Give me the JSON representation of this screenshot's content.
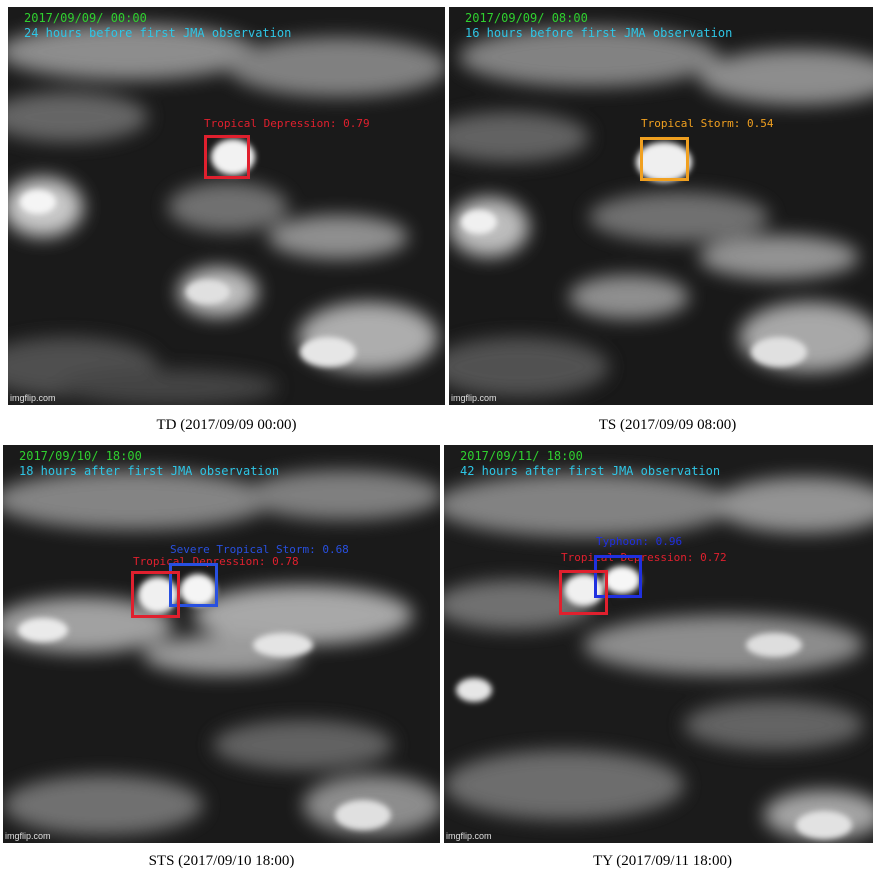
{
  "panels": [
    {
      "date": "2017/09/09/ 00:00",
      "obs": "24 hours before first JMA observation",
      "caption": "TD (2017/09/09 00:00)",
      "watermark": "imgflip.com",
      "detections": [
        {
          "label": "Tropical Depression: 0.79",
          "color": "#e0202e"
        }
      ]
    },
    {
      "date": "2017/09/09/ 08:00",
      "obs": "16 hours before first JMA observation",
      "caption": "TS (2017/09/09 08:00)",
      "watermark": "imgflip.com",
      "detections": [
        {
          "label": "Tropical Storm: 0.54",
          "color": "#f0a020"
        }
      ]
    },
    {
      "date": "2017/09/10/ 18:00",
      "obs": "18 hours after first JMA observation",
      "caption": "STS (2017/09/10 18:00)",
      "watermark": "imgflip.com",
      "detections": [
        {
          "label": "Severe Tropical Storm: 0.68",
          "color": "#2850e0"
        },
        {
          "label": "Tropical Depression: 0.78",
          "color": "#e0202e"
        }
      ]
    },
    {
      "date": "2017/09/11/ 18:00",
      "obs": "42 hours after first JMA observation",
      "caption": "TY (2017/09/11 18:00)",
      "watermark": "imgflip.com",
      "detections": [
        {
          "label": "Typhoon: 0.96",
          "color": "#2030e0"
        },
        {
          "label": "Tropical Depression: 0.72",
          "color": "#e0202e"
        }
      ]
    }
  ]
}
